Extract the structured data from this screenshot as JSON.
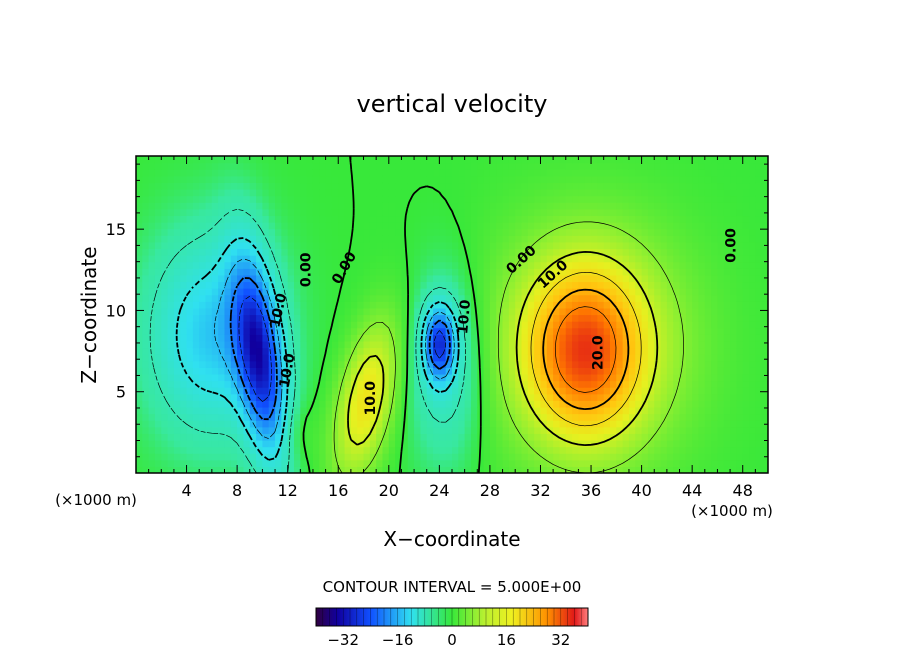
{
  "chart_data": {
    "type": "heatmap",
    "title": "vertical velocity",
    "xlabel": "X−coordinate",
    "ylabel": "Z−coordinate",
    "x_unit_left": "(×1000 m)",
    "x_unit_right": "(×1000 m)",
    "xlim": [
      0,
      50
    ],
    "ylim": [
      0,
      19.5
    ],
    "x_ticks": [
      4,
      8,
      12,
      16,
      20,
      24,
      28,
      32,
      36,
      40,
      44,
      48
    ],
    "y_ticks": [
      5,
      10,
      15
    ],
    "contour_interval_text": "CONTOUR INTERVAL = 5.000E+00",
    "colorbar": {
      "range": [
        -40,
        40
      ],
      "ticks": [
        -32,
        -16,
        0,
        16,
        32
      ],
      "tick_labels": [
        "−32",
        "−16",
        "0",
        "16",
        "32"
      ]
    },
    "contour_labels": [
      {
        "text": "0.00",
        "x": 13.5,
        "z": 12.5,
        "rot": -90
      },
      {
        "text": "0.00",
        "x": 16.5,
        "z": 12.6,
        "rot": -60
      },
      {
        "text": "10.0",
        "x": 11.3,
        "z": 10.0,
        "rot": -78
      },
      {
        "text": "10.0",
        "x": 12.0,
        "z": 6.3,
        "rot": -80
      },
      {
        "text": "10.0",
        "x": 18.6,
        "z": 4.6,
        "rot": -90
      },
      {
        "text": "10.0",
        "x": 26.0,
        "z": 9.6,
        "rot": -85
      },
      {
        "text": "0.00",
        "x": 30.5,
        "z": 13.1,
        "rot": -42
      },
      {
        "text": "10.0",
        "x": 33.0,
        "z": 12.2,
        "rot": -42
      },
      {
        "text": "20.0",
        "x": 36.6,
        "z": 7.4,
        "rot": -90
      },
      {
        "text": "0.00",
        "x": 47.1,
        "z": 14.0,
        "rot": -90
      }
    ],
    "field_centers": [
      {
        "x": 10.0,
        "z": 6.5,
        "value": -32,
        "note": "downdraft"
      },
      {
        "x": 24.0,
        "z": 8.0,
        "value": -22,
        "note": "downdraft"
      },
      {
        "x": 18.0,
        "z": 4.5,
        "value": 14,
        "note": "updraft"
      },
      {
        "x": 35.0,
        "z": 7.5,
        "value": 26,
        "note": "updraft"
      }
    ]
  }
}
